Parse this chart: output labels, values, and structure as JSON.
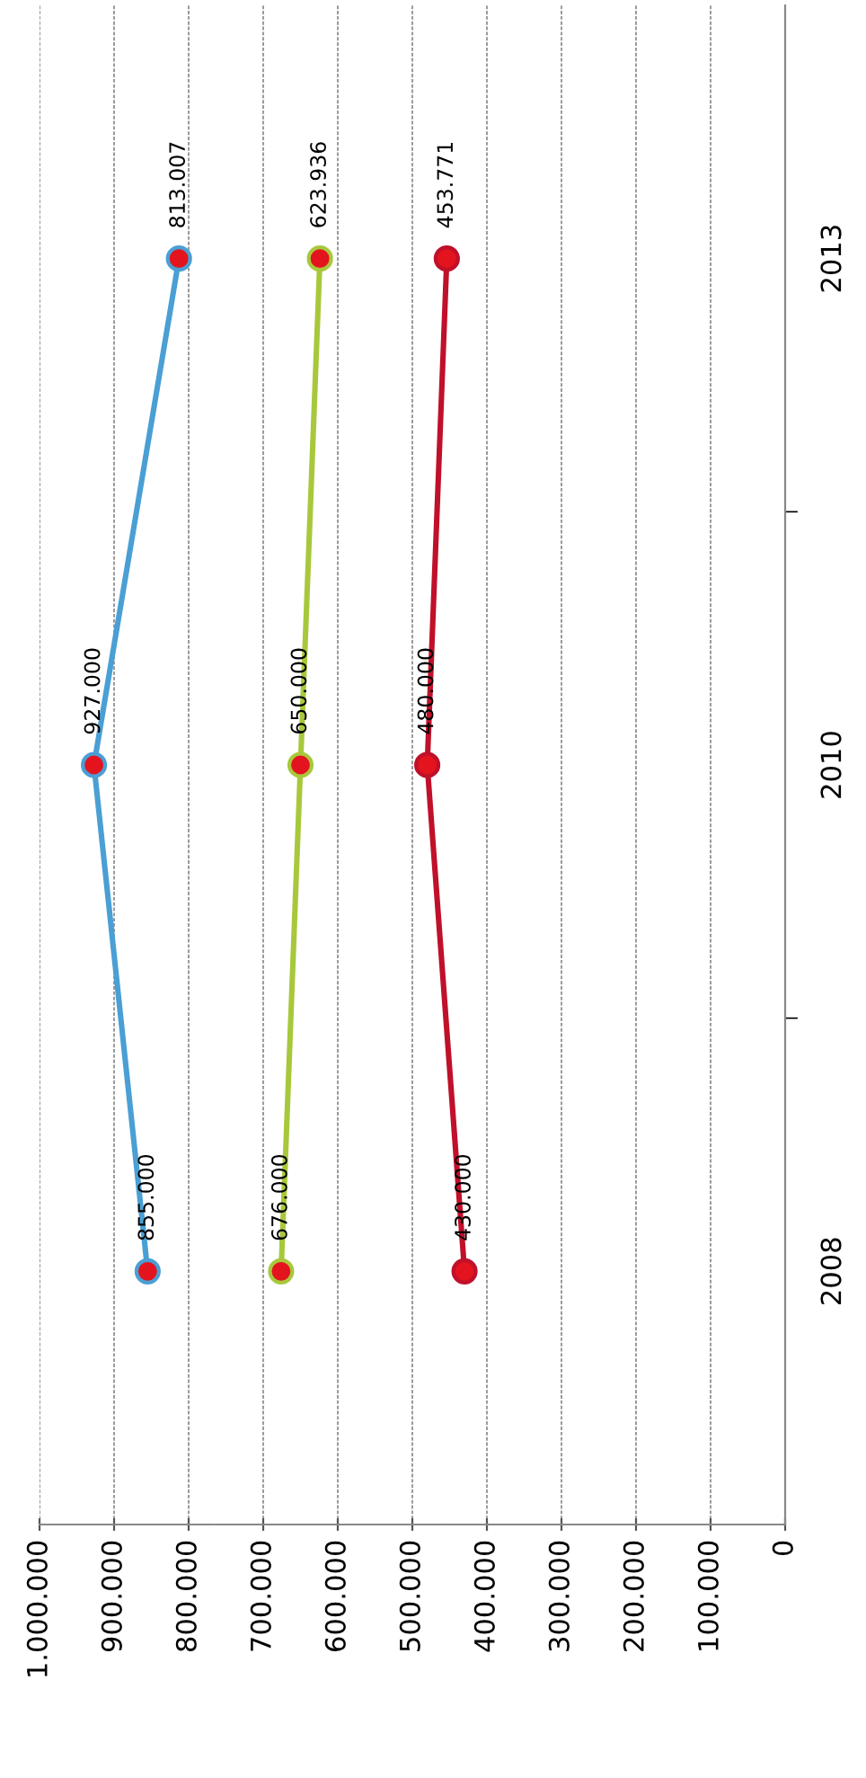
{
  "chart_data": {
    "type": "line",
    "orientation": "horizontal",
    "categories": [
      "2013",
      "2010",
      "2008"
    ],
    "series": [
      {
        "color": "#4a9fd4",
        "values": [
          813007,
          927000,
          855000
        ],
        "value_labels": [
          "813.007",
          "927.000",
          "855.000"
        ]
      },
      {
        "color": "#a8c83c",
        "values": [
          623936,
          650000,
          676000
        ],
        "value_labels": [
          "623.936",
          "650.000",
          "676.000"
        ]
      },
      {
        "color": "#c0102a",
        "values": [
          453771,
          480000,
          430000
        ],
        "value_labels": [
          "453.771",
          "480.000",
          "430.000"
        ]
      }
    ],
    "xlim": [
      1000000,
      0
    ],
    "xticks": [
      {
        "value": 1000000,
        "label": "1.000.000"
      },
      {
        "value": 900000,
        "label": "900.000"
      },
      {
        "value": 800000,
        "label": "800.000"
      },
      {
        "value": 700000,
        "label": "700.000"
      },
      {
        "value": 600000,
        "label": "600.000"
      },
      {
        "value": 500000,
        "label": "500.000"
      },
      {
        "value": 400000,
        "label": "400.000"
      },
      {
        "value": 300000,
        "label": "300.000"
      },
      {
        "value": 200000,
        "label": "200.000"
      },
      {
        "value": 100000,
        "label": "100.000"
      },
      0
    ],
    "grid": "x",
    "marker": "circle",
    "line_style": "solid"
  }
}
